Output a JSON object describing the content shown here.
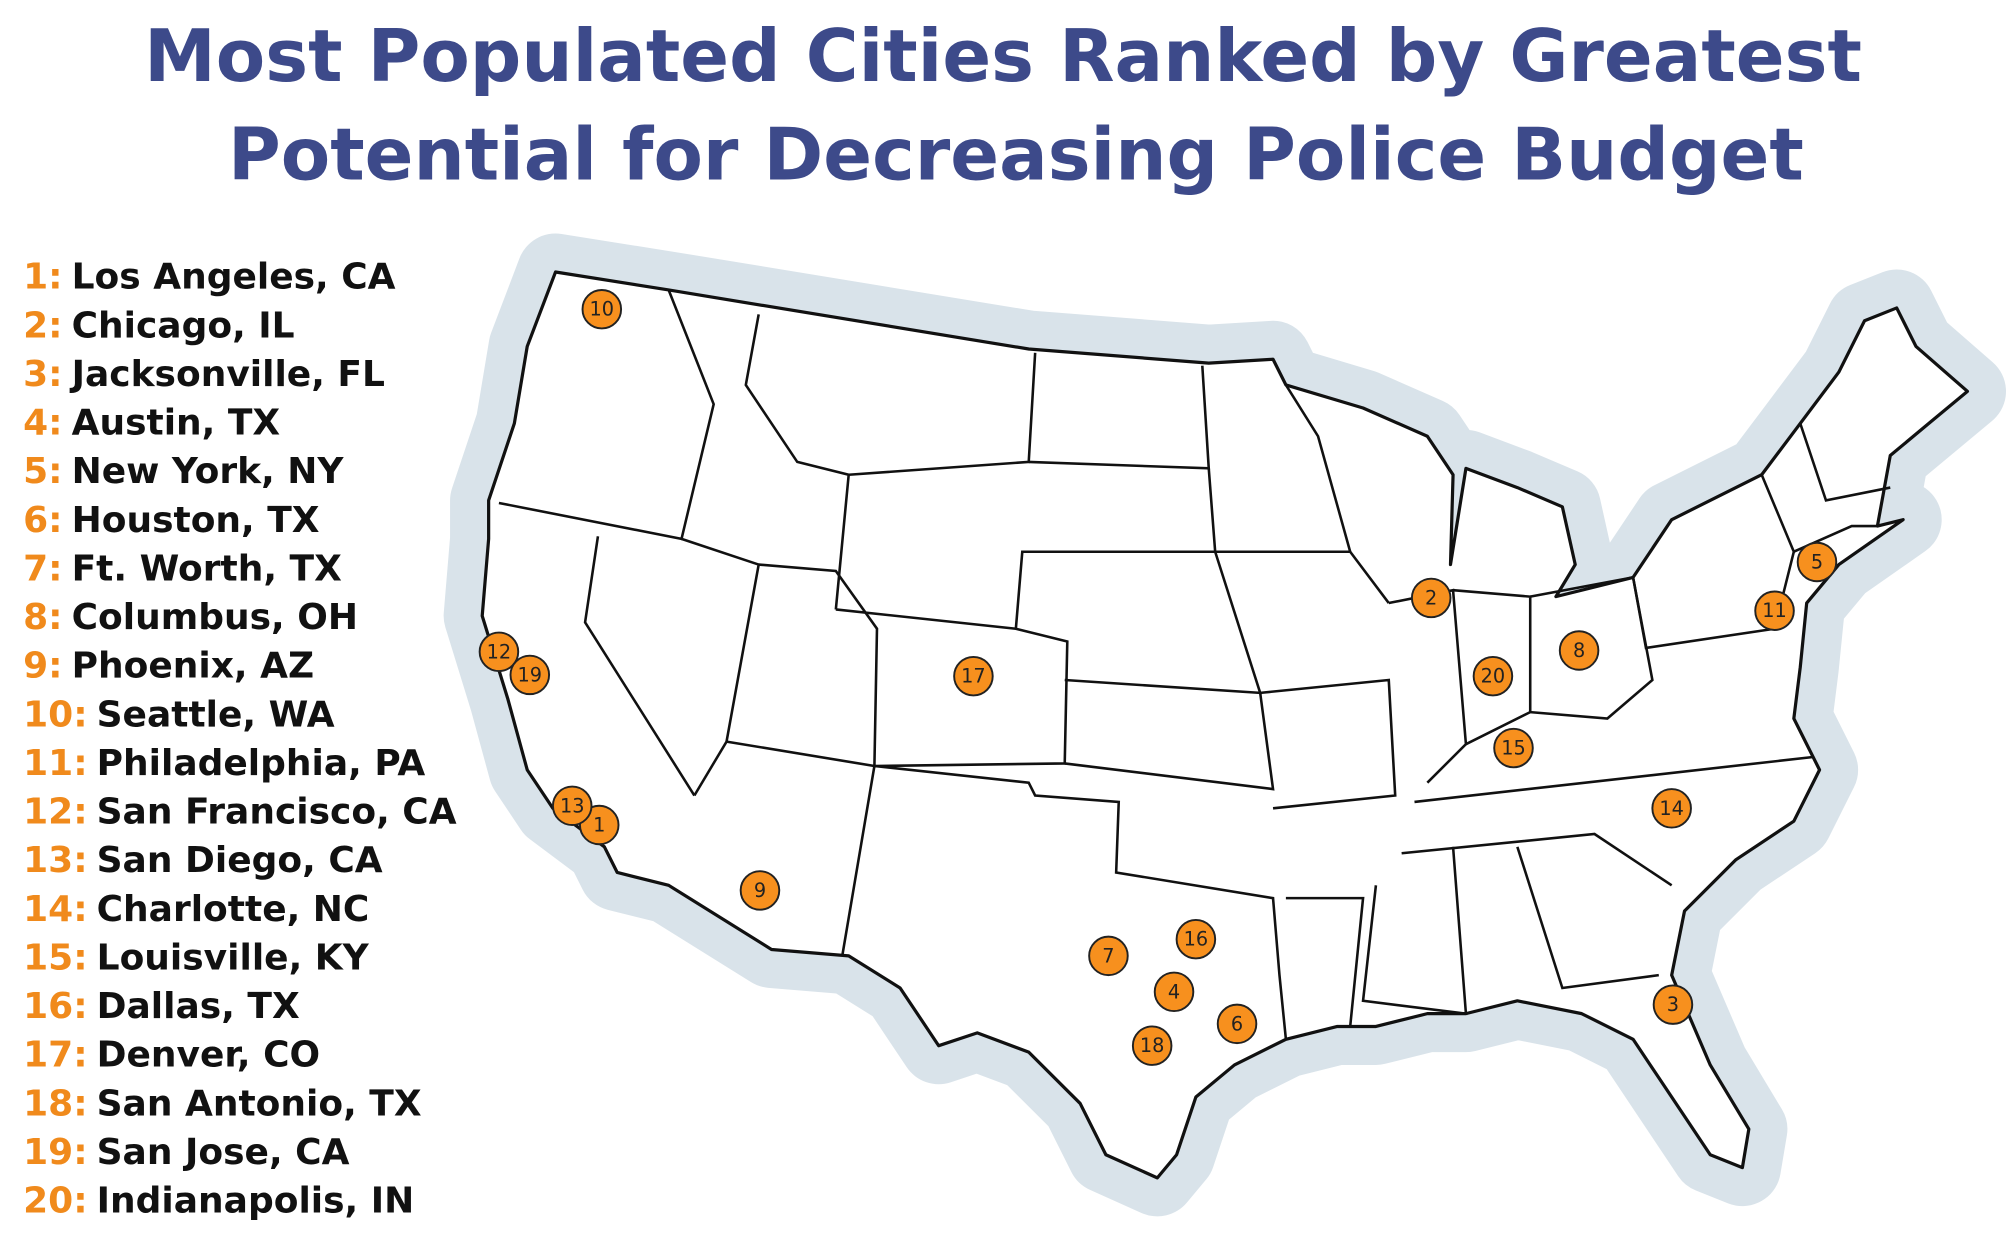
{
  "title": [
    "Most Populated Cities Ranked by Greatest",
    "Potential for Decreasing Police Budget"
  ],
  "list": [
    {
      "rank": "1:",
      "city": "Los Angeles, CA"
    },
    {
      "rank": "2:",
      "city": "Chicago, IL"
    },
    {
      "rank": "3:",
      "city": "Jacksonville, FL"
    },
    {
      "rank": "4:",
      "city": "Austin, TX"
    },
    {
      "rank": "5:",
      "city": "New York, NY"
    },
    {
      "rank": "6:",
      "city": "Houston, TX"
    },
    {
      "rank": "7:",
      "city": "Ft. Worth, TX"
    },
    {
      "rank": "8:",
      "city": "Columbus, OH"
    },
    {
      "rank": "9:",
      "city": "Phoenix, AZ"
    },
    {
      "rank": "10:",
      "city": "Seattle, WA"
    },
    {
      "rank": "11:",
      "city": "Philadelphia, PA"
    },
    {
      "rank": "12:",
      "city": "San Francisco, CA"
    },
    {
      "rank": "13:",
      "city": "San Diego, CA"
    },
    {
      "rank": "14:",
      "city": "Charlotte, NC"
    },
    {
      "rank": "15:",
      "city": "Louisville, KY"
    },
    {
      "rank": "16:",
      "city": "Dallas, TX"
    },
    {
      "rank": "17:",
      "city": "Denver, CO"
    },
    {
      "rank": "18:",
      "city": "San Antonio, TX"
    },
    {
      "rank": "19:",
      "city": "San Jose, CA"
    },
    {
      "rank": "20:",
      "city": "Indianapolis, IN"
    }
  ],
  "markers": [
    "1",
    "2",
    "3",
    "4",
    "5",
    "6",
    "7",
    "8",
    "9",
    "10",
    "11",
    "12",
    "13",
    "14",
    "15",
    "16",
    "17",
    "18",
    "19",
    "20"
  ]
}
